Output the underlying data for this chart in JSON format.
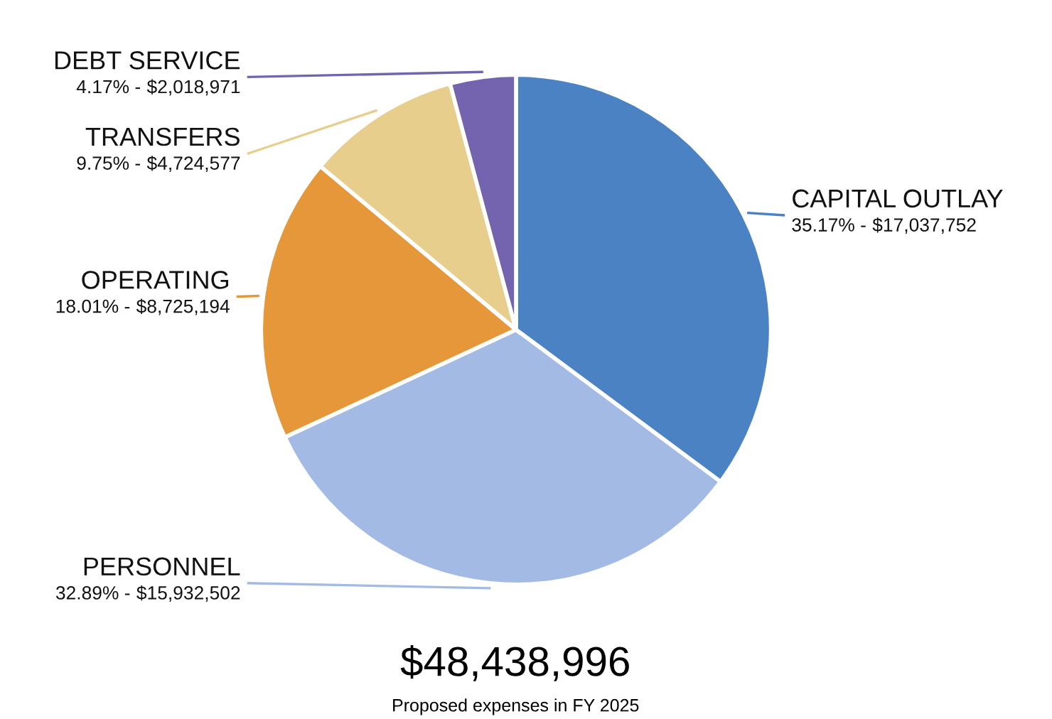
{
  "chart_data": {
    "type": "pie",
    "title": "$48,438,996",
    "subtitle": "Proposed expenses in FY 2025",
    "categories": [
      "CAPITAL OUTLAY",
      "PERSONNEL",
      "OPERATING",
      "TRANSFERS",
      "DEBT SERVICE"
    ],
    "values": [
      17037752,
      15932502,
      8725194,
      4724577,
      2018971
    ],
    "value_labels": [
      "$17,037,752",
      "$15,932,502",
      "$8,725,194",
      "$4,724,577",
      "$2,018,971"
    ],
    "annotations": [
      {
        "text": "35.17% -",
        "x": "CAPITAL OUTLAY"
      },
      {
        "text": "32.89% -",
        "x": "PERSONNEL"
      },
      {
        "text": "18.01% -",
        "x": "OPERATING"
      },
      {
        "text": "9.75% -",
        "x": "TRANSFERS"
      },
      {
        "text": "4.17% -",
        "x": "DEBT SERVICE"
      }
    ],
    "colors": [
      "#4a82c3",
      "#a3bbe4",
      "#e5973a",
      "#e8ce8c",
      "#7463ae"
    ],
    "legend": false
  }
}
